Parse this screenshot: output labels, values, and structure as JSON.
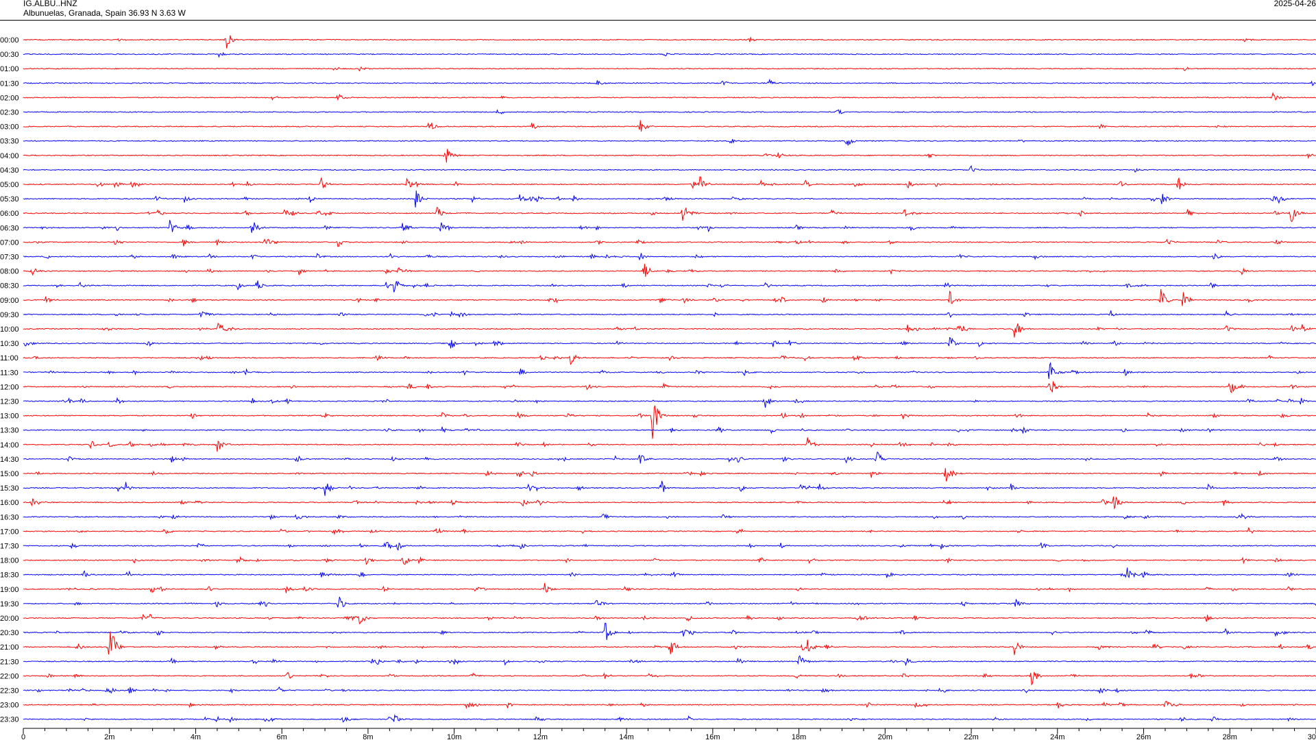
{
  "header": {
    "station_code": "IG.ALBU..HNZ",
    "location": "Albunuelas, Granada, Spain  36.93 N 3.63 W",
    "date": "2025-04-26"
  },
  "colors": {
    "even_row": "#ff0000",
    "odd_row": "#0000ff",
    "axis": "#000000",
    "background": "#ffffff"
  },
  "chart_data": {
    "type": "line",
    "plot_kind": "helicorder",
    "title": "",
    "xlabel": "",
    "ylabel": "",
    "row_interval_minutes": 30,
    "xlim": [
      0,
      30
    ],
    "x_unit": "minutes",
    "row_labels": [
      "00:00",
      "00:30",
      "01:00",
      "01:30",
      "02:00",
      "02:30",
      "03:00",
      "03:30",
      "04:00",
      "04:30",
      "05:00",
      "05:30",
      "06:00",
      "06:30",
      "07:00",
      "07:30",
      "08:00",
      "08:30",
      "09:00",
      "09:30",
      "10:00",
      "10:30",
      "11:00",
      "11:30",
      "12:00",
      "12:30",
      "13:00",
      "13:30",
      "14:00",
      "14:30",
      "15:00",
      "15:30",
      "16:00",
      "16:30",
      "17:00",
      "17:30",
      "18:00",
      "18:30",
      "19:00",
      "19:30",
      "20:00",
      "20:30",
      "21:00",
      "21:30",
      "22:00",
      "22:30",
      "23:00",
      "23:30"
    ],
    "x_ticks": [
      0,
      2,
      4,
      6,
      8,
      10,
      12,
      14,
      16,
      18,
      20,
      22,
      24,
      26,
      28,
      30
    ],
    "x_tick_labels": [
      "0",
      "2m",
      "4m",
      "6m",
      "8m",
      "10m",
      "12m",
      "14m",
      "16m",
      "18m",
      "20m",
      "22m",
      "24m",
      "26m",
      "28m",
      "30"
    ],
    "grid": false,
    "legend": "none",
    "row_colors": [
      "red",
      "blue"
    ],
    "events": [
      {
        "row": "00:00",
        "minute": 4.7,
        "amp": 1.2
      },
      {
        "row": "00:00",
        "minute": 2.2,
        "amp": 0.2
      },
      {
        "row": "01:00",
        "minute": 7.8,
        "amp": 0.3
      },
      {
        "row": "01:30",
        "minute": 16.2,
        "amp": 0.4
      },
      {
        "row": "01:30",
        "minute": 17.3,
        "amp": 0.5
      },
      {
        "row": "02:00",
        "minute": 7.3,
        "amp": 0.5
      },
      {
        "row": "02:00",
        "minute": 29.0,
        "amp": 0.6
      },
      {
        "row": "03:00",
        "minute": 9.4,
        "amp": 0.8
      },
      {
        "row": "03:00",
        "minute": 11.8,
        "amp": 0.5
      },
      {
        "row": "03:00",
        "minute": 14.3,
        "amp": 0.9
      },
      {
        "row": "03:30",
        "minute": 19.1,
        "amp": 0.8
      },
      {
        "row": "04:00",
        "minute": 9.8,
        "amp": 1.1
      },
      {
        "row": "04:00",
        "minute": 17.5,
        "amp": 0.5
      },
      {
        "row": "04:00",
        "minute": 29.8,
        "amp": 0.5
      },
      {
        "row": "05:00",
        "minute": 2.1,
        "amp": 0.5
      },
      {
        "row": "05:00",
        "minute": 6.9,
        "amp": 0.8
      },
      {
        "row": "05:00",
        "minute": 8.9,
        "amp": 0.7
      },
      {
        "row": "05:00",
        "minute": 15.7,
        "amp": 1.0
      },
      {
        "row": "05:00",
        "minute": 26.8,
        "amp": 0.8
      },
      {
        "row": "05:30",
        "minute": 6.6,
        "amp": 0.8
      },
      {
        "row": "05:30",
        "minute": 9.1,
        "amp": 1.2
      },
      {
        "row": "05:30",
        "minute": 11.5,
        "amp": 0.8
      },
      {
        "row": "05:30",
        "minute": 26.4,
        "amp": 0.8
      },
      {
        "row": "06:00",
        "minute": 9.6,
        "amp": 1.0
      },
      {
        "row": "06:00",
        "minute": 15.3,
        "amp": 1.6
      },
      {
        "row": "06:00",
        "minute": 29.4,
        "amp": 1.5
      },
      {
        "row": "06:30",
        "minute": 3.4,
        "amp": 1.0
      },
      {
        "row": "06:30",
        "minute": 5.3,
        "amp": 1.0
      },
      {
        "row": "06:30",
        "minute": 9.7,
        "amp": 1.0
      },
      {
        "row": "07:00",
        "minute": 5.6,
        "amp": 0.7
      },
      {
        "row": "07:00",
        "minute": 7.3,
        "amp": 0.7
      },
      {
        "row": "08:00",
        "minute": 14.4,
        "amp": 1.0
      },
      {
        "row": "08:30",
        "minute": 5.4,
        "amp": 0.8
      },
      {
        "row": "08:30",
        "minute": 8.6,
        "amp": 0.9
      },
      {
        "row": "09:00",
        "minute": 21.5,
        "amp": 1.0
      },
      {
        "row": "09:00",
        "minute": 26.4,
        "amp": 1.2
      },
      {
        "row": "09:00",
        "minute": 26.9,
        "amp": 1.0
      },
      {
        "row": "10:00",
        "minute": 4.5,
        "amp": 1.0
      },
      {
        "row": "10:00",
        "minute": 23.0,
        "amp": 1.4
      },
      {
        "row": "10:30",
        "minute": 9.9,
        "amp": 1.0
      },
      {
        "row": "10:30",
        "minute": 21.5,
        "amp": 0.9
      },
      {
        "row": "11:00",
        "minute": 12.7,
        "amp": 0.8
      },
      {
        "row": "11:30",
        "minute": 23.8,
        "amp": 1.5
      },
      {
        "row": "12:00",
        "minute": 23.8,
        "amp": 2.2
      },
      {
        "row": "12:00",
        "minute": 28.0,
        "amp": 1.0
      },
      {
        "row": "12:30",
        "minute": 17.2,
        "amp": 1.0
      },
      {
        "row": "13:00",
        "minute": 14.6,
        "amp": 2.5
      },
      {
        "row": "14:00",
        "minute": 4.5,
        "amp": 1.0
      },
      {
        "row": "14:00",
        "minute": 18.2,
        "amp": 0.9
      },
      {
        "row": "14:30",
        "minute": 14.3,
        "amp": 0.8
      },
      {
        "row": "14:30",
        "minute": 19.8,
        "amp": 0.9
      },
      {
        "row": "15:00",
        "minute": 21.4,
        "amp": 1.0
      },
      {
        "row": "15:30",
        "minute": 7.0,
        "amp": 1.0
      },
      {
        "row": "15:30",
        "minute": 14.8,
        "amp": 0.9
      },
      {
        "row": "16:00",
        "minute": 0.2,
        "amp": 0.8
      },
      {
        "row": "16:00",
        "minute": 25.3,
        "amp": 1.0
      },
      {
        "row": "17:30",
        "minute": 8.4,
        "amp": 0.9
      },
      {
        "row": "18:00",
        "minute": 8.8,
        "amp": 0.9
      },
      {
        "row": "18:30",
        "minute": 25.6,
        "amp": 1.1
      },
      {
        "row": "19:00",
        "minute": 12.1,
        "amp": 0.8
      },
      {
        "row": "19:30",
        "minute": 7.3,
        "amp": 1.1
      },
      {
        "row": "20:00",
        "minute": 7.8,
        "amp": 0.8
      },
      {
        "row": "20:30",
        "minute": 13.5,
        "amp": 1.2
      },
      {
        "row": "20:30",
        "minute": 15.3,
        "amp": 1.0
      },
      {
        "row": "21:00",
        "minute": 2.0,
        "amp": 3.0
      },
      {
        "row": "21:00",
        "minute": 15.0,
        "amp": 1.3
      },
      {
        "row": "21:00",
        "minute": 18.2,
        "amp": 1.1
      },
      {
        "row": "21:00",
        "minute": 23.0,
        "amp": 1.1
      },
      {
        "row": "21:30",
        "minute": 18.0,
        "amp": 0.8
      },
      {
        "row": "22:00",
        "minute": 23.4,
        "amp": 1.0
      },
      {
        "row": "22:30",
        "minute": 2.0,
        "amp": 0.4
      },
      {
        "row": "23:00",
        "minute": 26.5,
        "amp": 0.8
      },
      {
        "row": "23:30",
        "minute": 8.6,
        "amp": 0.6
      }
    ]
  }
}
